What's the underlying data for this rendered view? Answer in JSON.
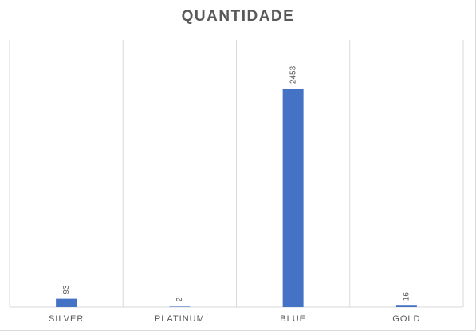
{
  "chart_data": {
    "type": "bar",
    "title": "QUANTIDADE",
    "categories": [
      "SILVER",
      "PLATINUM",
      "BLUE",
      "GOLD"
    ],
    "values": [
      93,
      2,
      2453,
      16
    ],
    "ylim": [
      0,
      3000
    ],
    "grid": "vertical category separators",
    "legend": "none",
    "bar_color": "#4472c4",
    "data_labels": true
  }
}
